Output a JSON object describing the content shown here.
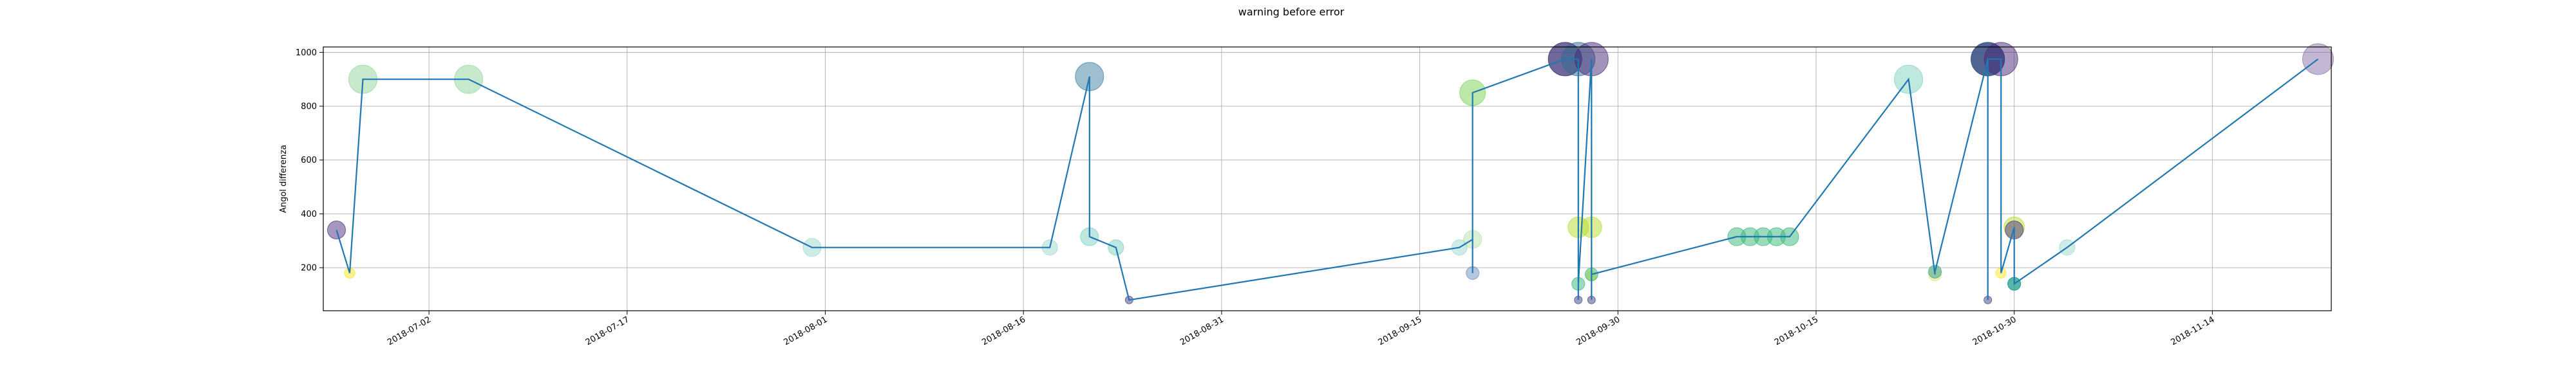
{
  "chart_data": {
    "type": "scatter",
    "title": "warning before error",
    "xlabel": "",
    "ylabel": "Angol differenza",
    "x_range": [
      "2018-06-24",
      "2018-11-23"
    ],
    "y_range": [
      40,
      1020
    ],
    "grid": true,
    "x_ticks": [
      "2018-07-02",
      "2018-07-17",
      "2018-08-01",
      "2018-08-16",
      "2018-08-31",
      "2018-09-15",
      "2018-09-30",
      "2018-10-15",
      "2018-10-30",
      "2018-11-14"
    ],
    "y_ticks": [
      200,
      400,
      600,
      800,
      1000
    ],
    "line_color": "#1f77b4",
    "series": [
      {
        "points": [
          {
            "x": "2018-06-25",
            "y": 340,
            "size": 14,
            "color": "#4b2f7f"
          },
          {
            "x": "2018-06-26",
            "y": 180,
            "size": 8,
            "color": "#f5e51a"
          },
          {
            "x": "2018-06-27",
            "y": 900,
            "size": 22,
            "color": "#8fd69b"
          },
          {
            "x": "2018-07-05",
            "y": 900,
            "size": 22,
            "color": "#8fd69b"
          },
          {
            "x": "2018-07-31",
            "y": 275,
            "size": 14,
            "color": "#9bd8cf"
          },
          {
            "x": "2018-08-18",
            "y": 275,
            "size": 12,
            "color": "#9bd8cf"
          },
          {
            "x": "2018-08-21",
            "y": 910,
            "size": 22,
            "color": "#3d7fa0"
          },
          {
            "x": "2018-08-21",
            "y": 315,
            "size": 14,
            "color": "#7ccfc0"
          },
          {
            "x": "2018-08-23",
            "y": 275,
            "size": 12,
            "color": "#7ccfc0"
          },
          {
            "x": "2018-08-24",
            "y": 80,
            "size": 6,
            "color": "#433e85"
          },
          {
            "x": "2018-09-18",
            "y": 275,
            "size": 12,
            "color": "#9bd8cf"
          },
          {
            "x": "2018-09-19",
            "y": 305,
            "size": 14,
            "color": "#b6e3ad"
          },
          {
            "x": "2018-09-19",
            "y": 180,
            "size": 10,
            "color": "#6a8fc2"
          },
          {
            "x": "2018-09-19",
            "y": 850,
            "size": 20,
            "color": "#7ad151"
          },
          {
            "x": "2018-09-26",
            "y": 975,
            "size": 26,
            "color": "#440154"
          },
          {
            "x": "2018-09-26",
            "y": 975,
            "size": 26,
            "color": "#3b528b"
          },
          {
            "x": "2018-09-27",
            "y": 975,
            "size": 26,
            "color": "#31688e"
          },
          {
            "x": "2018-09-27",
            "y": 80,
            "size": 6,
            "color": "#433e85"
          },
          {
            "x": "2018-09-27",
            "y": 350,
            "size": 16,
            "color": "#b5de2b"
          },
          {
            "x": "2018-09-27",
            "y": 140,
            "size": 10,
            "color": "#35b779"
          },
          {
            "x": "2018-09-28",
            "y": 975,
            "size": 26,
            "color": "#482878"
          },
          {
            "x": "2018-09-28",
            "y": 80,
            "size": 6,
            "color": "#433e85"
          },
          {
            "x": "2018-09-28",
            "y": 350,
            "size": 16,
            "color": "#b5de2b"
          },
          {
            "x": "2018-09-28",
            "y": 170,
            "size": 8,
            "color": "#fde725"
          },
          {
            "x": "2018-09-28",
            "y": 175,
            "size": 10,
            "color": "#35b779"
          },
          {
            "x": "2018-10-09",
            "y": 315,
            "size": 14,
            "color": "#35b779"
          },
          {
            "x": "2018-10-10",
            "y": 315,
            "size": 14,
            "color": "#35b779"
          },
          {
            "x": "2018-10-11",
            "y": 315,
            "size": 14,
            "color": "#35b779"
          },
          {
            "x": "2018-10-12",
            "y": 315,
            "size": 14,
            "color": "#35b779"
          },
          {
            "x": "2018-10-13",
            "y": 315,
            "size": 14,
            "color": "#35b779"
          },
          {
            "x": "2018-10-22",
            "y": 900,
            "size": 22,
            "color": "#7fd2c0"
          },
          {
            "x": "2018-10-24",
            "y": 175,
            "size": 10,
            "color": "#dfe36f"
          },
          {
            "x": "2018-10-24",
            "y": 185,
            "size": 10,
            "color": "#2a9d8f"
          },
          {
            "x": "2018-10-28",
            "y": 975,
            "size": 26,
            "color": "#440154"
          },
          {
            "x": "2018-10-28",
            "y": 80,
            "size": 6,
            "color": "#433e85"
          },
          {
            "x": "2018-10-28",
            "y": 975,
            "size": 26,
            "color": "#414487"
          },
          {
            "x": "2018-10-28",
            "y": 975,
            "size": 26,
            "color": "#31688e"
          },
          {
            "x": "2018-10-29",
            "y": 975,
            "size": 26,
            "color": "#482878"
          },
          {
            "x": "2018-10-29",
            "y": 180,
            "size": 8,
            "color": "#fde725"
          },
          {
            "x": "2018-10-30",
            "y": 350,
            "size": 16,
            "color": "#b5de2b"
          },
          {
            "x": "2018-10-30",
            "y": 340,
            "size": 14,
            "color": "#4b2f7f"
          },
          {
            "x": "2018-10-30",
            "y": 140,
            "size": 10,
            "color": "#1f9e89"
          },
          {
            "x": "2018-10-30",
            "y": 140,
            "size": 10,
            "color": "#1f9e89"
          },
          {
            "x": "2018-11-03",
            "y": 275,
            "size": 12,
            "color": "#9bd8cf"
          },
          {
            "x": "2018-11-22",
            "y": 975,
            "size": 24,
            "color": "#8a6fa8"
          }
        ]
      }
    ]
  }
}
